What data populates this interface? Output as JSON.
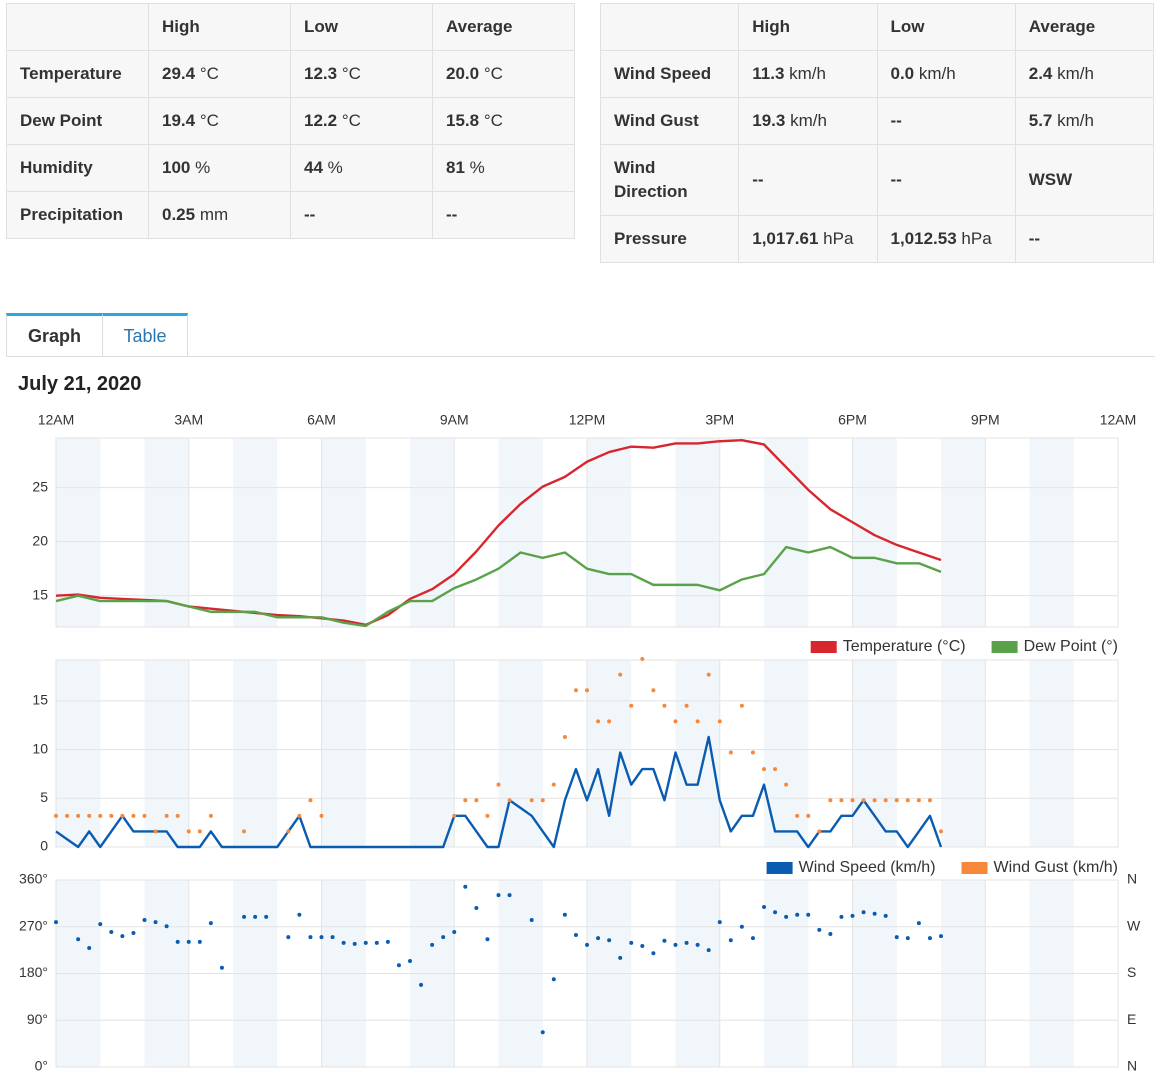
{
  "summary_tables": [
    {
      "columns": [
        "High",
        "Low",
        "Average"
      ],
      "rows": [
        {
          "label": "Temperature",
          "cells": [
            {
              "value": "29.4",
              "unit": "°C"
            },
            {
              "value": "12.3",
              "unit": "°C"
            },
            {
              "value": "20.0",
              "unit": "°C"
            }
          ]
        },
        {
          "label": "Dew Point",
          "cells": [
            {
              "value": "19.4",
              "unit": "°C"
            },
            {
              "value": "12.2",
              "unit": "°C"
            },
            {
              "value": "15.8",
              "unit": "°C"
            }
          ]
        },
        {
          "label": "Humidity",
          "cells": [
            {
              "value": "100",
              "unit": "%"
            },
            {
              "value": "44",
              "unit": "%"
            },
            {
              "value": "81",
              "unit": "%"
            }
          ]
        },
        {
          "label": "Precipitation",
          "cells": [
            {
              "value": "0.25",
              "unit": "mm"
            },
            "--",
            "--"
          ]
        }
      ]
    },
    {
      "columns": [
        "High",
        "Low",
        "Average"
      ],
      "rows": [
        {
          "label": "Wind Speed",
          "cells": [
            {
              "value": "11.3",
              "unit": "km/h"
            },
            {
              "value": "0.0",
              "unit": "km/h"
            },
            {
              "value": "2.4",
              "unit": "km/h"
            }
          ]
        },
        {
          "label": "Wind Gust",
          "cells": [
            {
              "value": "19.3",
              "unit": "km/h"
            },
            "--",
            {
              "value": "5.7",
              "unit": "km/h"
            }
          ]
        },
        {
          "label": "Wind Direction",
          "cells": [
            "--",
            "--",
            "WSW"
          ]
        },
        {
          "label": "Pressure",
          "cells": [
            {
              "value": "1,017.61",
              "unit": "hPa"
            },
            {
              "value": "1,012.53",
              "unit": "hPa"
            },
            "--"
          ]
        }
      ]
    }
  ],
  "tabs": [
    "Graph",
    "Table"
  ],
  "date": "July 21, 2020",
  "chart_data": [
    {
      "type": "line",
      "x": [
        0,
        0.5,
        1,
        1.5,
        2,
        2.5,
        3,
        3.5,
        4,
        4.5,
        5,
        5.5,
        6,
        6.5,
        7,
        7.5,
        8,
        8.5,
        9,
        9.5,
        10,
        10.5,
        11,
        11.5,
        12,
        12.5,
        13,
        13.5,
        14,
        14.5,
        15,
        15.5,
        16,
        16.5,
        17,
        17.5,
        18,
        18.5,
        19,
        19.5,
        20
      ],
      "xlim": [
        0,
        24
      ],
      "xticks": [
        {
          "value": 0,
          "label": "12AM"
        },
        {
          "value": 3,
          "label": "3AM"
        },
        {
          "value": 6,
          "label": "6AM"
        },
        {
          "value": 9,
          "label": "9AM"
        },
        {
          "value": 12,
          "label": "12PM"
        },
        {
          "value": 15,
          "label": "3PM"
        },
        {
          "value": 18,
          "label": "6PM"
        },
        {
          "value": 21,
          "label": "9PM"
        },
        {
          "value": 24,
          "label": "12AM"
        }
      ],
      "ylim": [
        12.1,
        29.6
      ],
      "yticks": [
        15,
        20,
        25
      ],
      "grid": true,
      "series": [
        {
          "name": "Temperature (°C)",
          "color": "#d7262e",
          "values": [
            15.0,
            15.1,
            14.8,
            14.7,
            14.6,
            14.5,
            14.0,
            13.8,
            13.6,
            13.4,
            13.2,
            13.1,
            12.9,
            12.7,
            12.3,
            13.2,
            14.7,
            15.6,
            17.0,
            19.1,
            21.5,
            23.5,
            25.1,
            26.0,
            27.4,
            28.3,
            28.8,
            28.7,
            29.1,
            29.1,
            29.3,
            29.4,
            29.0,
            26.9,
            24.8,
            23.0,
            21.8,
            20.6,
            19.7,
            19.0,
            18.3
          ]
        },
        {
          "name": "Dew Point (°)",
          "color": "#5aa249",
          "values": [
            14.5,
            15.0,
            14.5,
            14.5,
            14.5,
            14.5,
            14.0,
            13.5,
            13.5,
            13.5,
            13.0,
            13.0,
            13.0,
            12.5,
            12.2,
            13.5,
            14.5,
            14.5,
            15.7,
            16.5,
            17.5,
            19.0,
            18.5,
            19.0,
            17.5,
            17.0,
            17.0,
            16.0,
            16.0,
            16.0,
            15.5,
            16.5,
            17.0,
            19.5,
            19.0,
            19.5,
            18.5,
            18.5,
            18.0,
            18.0,
            17.2
          ]
        }
      ]
    },
    {
      "type": "line",
      "x": [
        0,
        0.25,
        0.5,
        0.75,
        1,
        1.25,
        1.5,
        1.75,
        2,
        2.25,
        2.5,
        2.75,
        3,
        3.25,
        3.5,
        3.75,
        4,
        4.25,
        4.5,
        4.75,
        5,
        5.25,
        5.5,
        5.75,
        6,
        6.25,
        6.5,
        6.75,
        7,
        7.25,
        7.5,
        7.75,
        8,
        8.25,
        8.5,
        8.75,
        9,
        9.25,
        9.5,
        9.75,
        10,
        10.25,
        10.5,
        10.75,
        11,
        11.25,
        11.5,
        11.75,
        12,
        12.25,
        12.5,
        12.75,
        13,
        13.25,
        13.5,
        13.75,
        14,
        14.25,
        14.5,
        14.75,
        15,
        15.25,
        15.5,
        15.75,
        16,
        16.25,
        16.5,
        16.75,
        17,
        17.25,
        17.5,
        17.75,
        18,
        18.25,
        18.5,
        18.75,
        19,
        19.25,
        19.5,
        19.75,
        20
      ],
      "ylim": [
        0,
        19.2
      ],
      "yticks": [
        0,
        5,
        10,
        15
      ],
      "grid": true,
      "series": [
        {
          "name": "Wind Speed (km/h)",
          "color": "#0a5cb0",
          "mode": "line",
          "values": [
            1.6,
            0.8,
            0,
            1.6,
            0,
            1.6,
            3.2,
            1.6,
            1.6,
            1.6,
            1.6,
            0,
            0,
            0,
            1.6,
            0,
            0,
            0,
            0,
            0,
            0,
            1.6,
            3.2,
            0,
            0,
            0,
            0,
            0,
            0,
            0,
            0,
            0,
            0,
            0,
            0,
            0,
            3.2,
            3.2,
            1.6,
            0,
            0,
            4.8,
            4,
            3.2,
            1.6,
            0,
            4.8,
            8,
            4.8,
            8,
            3.2,
            9.7,
            6.4,
            8,
            8,
            4.8,
            9.7,
            6.4,
            6.4,
            11.3,
            4.8,
            1.6,
            3.2,
            3.2,
            6.4,
            1.6,
            1.6,
            1.6,
            0,
            1.6,
            1.6,
            3.2,
            3.2,
            4.8,
            3.2,
            1.6,
            1.6,
            0,
            1.6,
            3.2,
            0
          ]
        },
        {
          "name": "Wind Gust (km/h)",
          "color": "#f7883a",
          "mode": "markers",
          "values": [
            3.2,
            3.2,
            3.2,
            3.2,
            3.2,
            3.2,
            3.2,
            3.2,
            3.2,
            1.6,
            3.2,
            3.2,
            1.6,
            1.6,
            3.2,
            null,
            null,
            1.6,
            null,
            null,
            null,
            1.6,
            3.2,
            4.8,
            3.2,
            null,
            null,
            null,
            null,
            null,
            null,
            null,
            null,
            null,
            null,
            null,
            3.2,
            4.8,
            4.8,
            3.2,
            6.4,
            4.8,
            null,
            4.8,
            4.8,
            6.4,
            11.3,
            16.1,
            16.1,
            12.9,
            12.9,
            17.7,
            14.5,
            19.3,
            16.1,
            14.5,
            12.9,
            14.5,
            12.9,
            17.7,
            12.9,
            9.7,
            14.5,
            9.7,
            8,
            8,
            6.4,
            3.2,
            3.2,
            1.6,
            4.8,
            4.8,
            4.8,
            4.8,
            4.8,
            4.8,
            4.8,
            4.8,
            4.8,
            4.8,
            1.6
          ]
        }
      ]
    },
    {
      "type": "scatter",
      "x": [
        0,
        0.25,
        0.5,
        0.75,
        1,
        1.25,
        1.5,
        1.75,
        2,
        2.25,
        2.5,
        2.75,
        3,
        3.25,
        3.5,
        3.75,
        4,
        4.25,
        4.5,
        4.75,
        5,
        5.25,
        5.5,
        5.75,
        6,
        6.25,
        6.5,
        6.75,
        7,
        7.25,
        7.5,
        7.75,
        8,
        8.25,
        8.5,
        8.75,
        9,
        9.25,
        9.5,
        9.75,
        10,
        10.25,
        10.5,
        10.75,
        11,
        11.25,
        11.5,
        11.75,
        12,
        12.25,
        12.5,
        12.75,
        13,
        13.25,
        13.5,
        13.75,
        14,
        14.25,
        14.5,
        14.75,
        15,
        15.25,
        15.5,
        15.75,
        16,
        16.25,
        16.5,
        16.75,
        17,
        17.25,
        17.5,
        17.75,
        18,
        18.25,
        18.5,
        18.75,
        19,
        19.25,
        19.5,
        19.75,
        20
      ],
      "ylim": [
        0,
        360
      ],
      "yticks": [
        {
          "value": 0,
          "label": "0°"
        },
        {
          "value": 90,
          "label": "90°"
        },
        {
          "value": 180,
          "label": "180°"
        },
        {
          "value": 270,
          "label": "270°"
        },
        {
          "value": 360,
          "label": "360°"
        }
      ],
      "y2lim": [
        0,
        360
      ],
      "y2ticks": [
        {
          "value": 0,
          "label": "N"
        },
        {
          "value": 90,
          "label": "E"
        },
        {
          "value": 180,
          "label": "S"
        },
        {
          "value": 270,
          "label": "W"
        },
        {
          "value": 360,
          "label": "N"
        }
      ],
      "grid": true,
      "series": [
        {
          "color": "#0a5cb0",
          "values": [
            279,
            null,
            246,
            229,
            275,
            260,
            252,
            258,
            283,
            279,
            271,
            241,
            241,
            241,
            277,
            191,
            null,
            289,
            289,
            289,
            null,
            250,
            293,
            250,
            250,
            250,
            239,
            237,
            239,
            239,
            241,
            196,
            204,
            158,
            235,
            250,
            260,
            347,
            306,
            246,
            331,
            331,
            null,
            283,
            67,
            169,
            293,
            254,
            235,
            248,
            244,
            210,
            239,
            233,
            219,
            243,
            235,
            239,
            235,
            225,
            279,
            244,
            270,
            248,
            308,
            298,
            289,
            293,
            293,
            264,
            256,
            289,
            291,
            298,
            295,
            291,
            250,
            248,
            277,
            248,
            252
          ]
        }
      ]
    }
  ]
}
